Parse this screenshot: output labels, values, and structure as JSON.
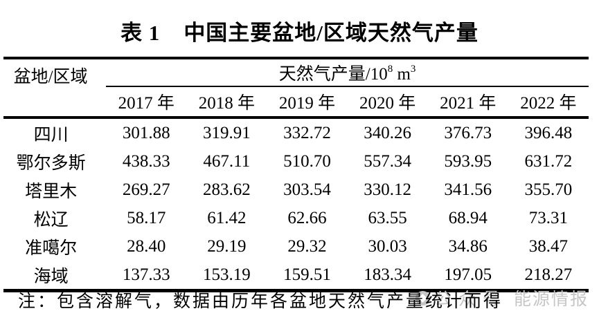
{
  "title": {
    "label": "表 1",
    "text": "中国主要盆地/区域天然气产量"
  },
  "table": {
    "corner_header": "盆地/区域",
    "unit_header": {
      "prefix": "天然气产量/10",
      "exp": "8",
      "mid": " m",
      "exp2": "3"
    },
    "year_headers": [
      "2017 年",
      "2018 年",
      "2019 年",
      "2020 年",
      "2021 年",
      "2022 年"
    ],
    "rows": [
      {
        "label": "四川",
        "values": [
          "301.88",
          "319.91",
          "332.72",
          "340.26",
          "376.73",
          "396.48"
        ]
      },
      {
        "label": "鄂尔多斯",
        "values": [
          "438.33",
          "467.11",
          "510.70",
          "557.34",
          "593.95",
          "631.72"
        ]
      },
      {
        "label": "塔里木",
        "values": [
          "269.27",
          "283.62",
          "303.54",
          "330.12",
          "341.56",
          "355.70"
        ]
      },
      {
        "label": "松辽",
        "values": [
          "58.17",
          "61.42",
          "62.66",
          "63.55",
          "68.94",
          "73.31"
        ]
      },
      {
        "label": "准噶尔",
        "values": [
          "28.40",
          "29.19",
          "29.32",
          "30.03",
          "34.86",
          "38.47"
        ]
      },
      {
        "label": "海域",
        "values": [
          "137.33",
          "153.19",
          "159.51",
          "183.34",
          "197.05",
          "218.27"
        ]
      }
    ]
  },
  "note": "注：包含溶解气，数据由历年各盆地天然气产量统计而得",
  "watermark": {
    "overlay_text": "公众号",
    "brand_text": "能源情报",
    "color": "#c6c6c6"
  }
}
